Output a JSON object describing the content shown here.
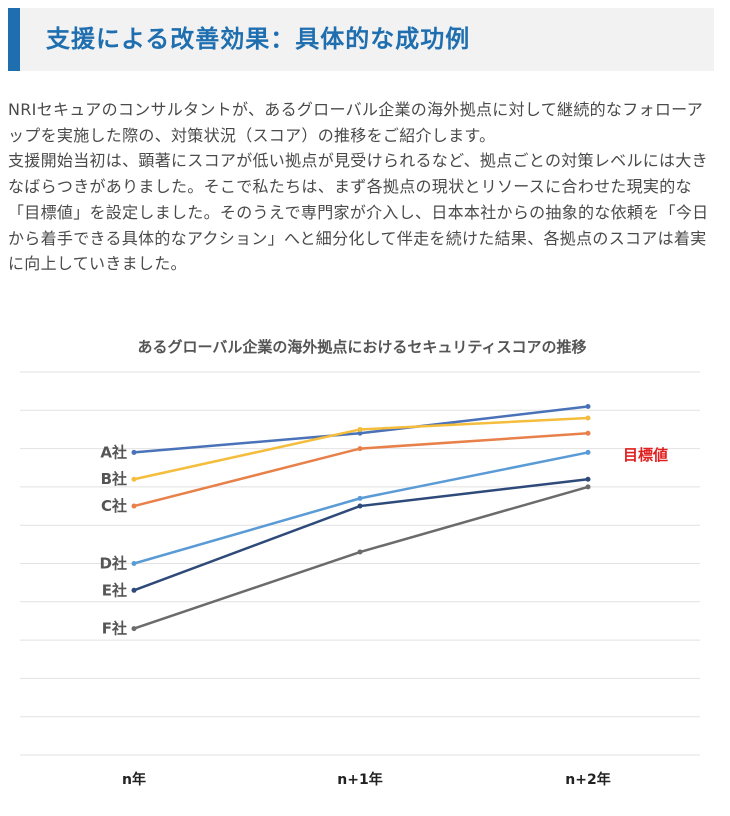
{
  "header": {
    "title": "支援による改善効果：具体的な成功例"
  },
  "intro": {
    "paragraph1": "NRIセキュアのコンサルタントが、あるグローバル企業の海外拠点に対して継続的なフォローアップを実施した際の、対策状況（スコア）の推移をご紹介します。",
    "paragraph2": "支援開始当初は、顕著にスコアが低い拠点が見受けられるなど、拠点ごとの対策レベルには大きなばらつきがありました。そこで私たちは、まず各拠点の現状とリソースに合わせた現実的な「目標値」を設定しました。そのうえで専門家が介入し、日本本社からの抽象的な依頼を「今日から着手できる具体的なアクション」へと細分化して伴走を続けた結果、各拠点のスコアは着実に向上していきました。"
  },
  "chart_data": {
    "type": "line",
    "title": "あるグローバル企業の海外拠点におけるセキュリティスコアの推移",
    "categories": [
      "n年",
      "n+1年",
      "n+2年"
    ],
    "ylim": [
      0,
      10
    ],
    "grid": true,
    "series": [
      {
        "name": "A社",
        "values": [
          7.9,
          8.4,
          9.1
        ],
        "color": "#4a72b8"
      },
      {
        "name": "B社",
        "values": [
          7.2,
          8.5,
          8.8
        ],
        "color": "#f5bd3c"
      },
      {
        "name": "C社",
        "values": [
          6.5,
          8.0,
          8.4
        ],
        "color": "#e8804a"
      },
      {
        "name": "D社",
        "values": [
          5.0,
          6.7,
          7.9
        ],
        "color": "#5b9bd5"
      },
      {
        "name": "E社",
        "values": [
          4.3,
          6.5,
          7.2
        ],
        "color": "#2e4a7a"
      },
      {
        "name": "F社",
        "values": [
          3.3,
          5.3,
          7.0
        ],
        "color": "#6b6b6b"
      }
    ],
    "annotation": "目標値"
  }
}
